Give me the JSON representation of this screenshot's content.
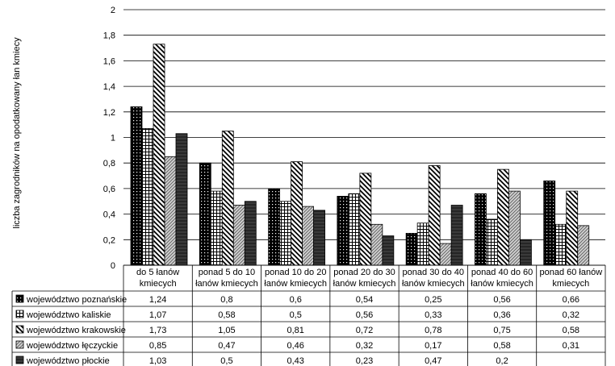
{
  "chart_data": {
    "type": "bar",
    "ylabel": "liczba zagrodników na opodatkowany łan kmiecy",
    "ylim": [
      0,
      2
    ],
    "yticks": [
      "0",
      "0,2",
      "0,4",
      "0,6",
      "0,8",
      "1",
      "1,2",
      "1,4",
      "1,6",
      "1,8",
      "2"
    ],
    "grid": true,
    "categories": [
      [
        "do 5 łanów",
        "kmiecych"
      ],
      [
        "ponad 5 do 10",
        "łanów kmiecych"
      ],
      [
        "ponad 10 do 20",
        "łanów kmiecych"
      ],
      [
        "ponad 20 do 30",
        "łanów kmiecych"
      ],
      [
        "ponad 30 do 40",
        "łanów kmiecych"
      ],
      [
        "ponad 40 do 60",
        "łanów kmiecych"
      ],
      [
        "ponad 60 łanów",
        "kmiecych"
      ]
    ],
    "series": [
      {
        "name": "województwo poznańskie",
        "pattern": "dots",
        "values": [
          1.24,
          0.8,
          0.6,
          0.54,
          0.25,
          0.56,
          0.66
        ],
        "labels": [
          "1,24",
          "0,8",
          "0,6",
          "0,54",
          "0,25",
          "0,56",
          "0,66"
        ]
      },
      {
        "name": "województwo kaliskie",
        "pattern": "grid",
        "values": [
          1.07,
          0.58,
          0.5,
          0.56,
          0.33,
          0.36,
          0.32
        ],
        "labels": [
          "1,07",
          "0,58",
          "0,5",
          "0,56",
          "0,33",
          "0,36",
          "0,32"
        ]
      },
      {
        "name": "województwo krakowskie",
        "pattern": "diag",
        "values": [
          1.73,
          1.05,
          0.81,
          0.72,
          0.78,
          0.75,
          0.58
        ],
        "labels": [
          "1,73",
          "1,05",
          "0,81",
          "0,72",
          "0,78",
          "0,75",
          "0,58"
        ]
      },
      {
        "name": "województwo łęczyckie",
        "pattern": "light",
        "values": [
          0.85,
          0.47,
          0.46,
          0.32,
          0.17,
          0.58,
          0.31
        ],
        "labels": [
          "0,85",
          "0,47",
          "0,46",
          "0,32",
          "0,17",
          "0,58",
          "0,31"
        ]
      },
      {
        "name": "województwo płockie",
        "pattern": "dark",
        "values": [
          1.03,
          0.5,
          0.43,
          0.23,
          0.47,
          0.2,
          null
        ],
        "labels": [
          "1,03",
          "0,5",
          "0,43",
          "0,23",
          "0,47",
          "0,2",
          ""
        ]
      }
    ]
  }
}
